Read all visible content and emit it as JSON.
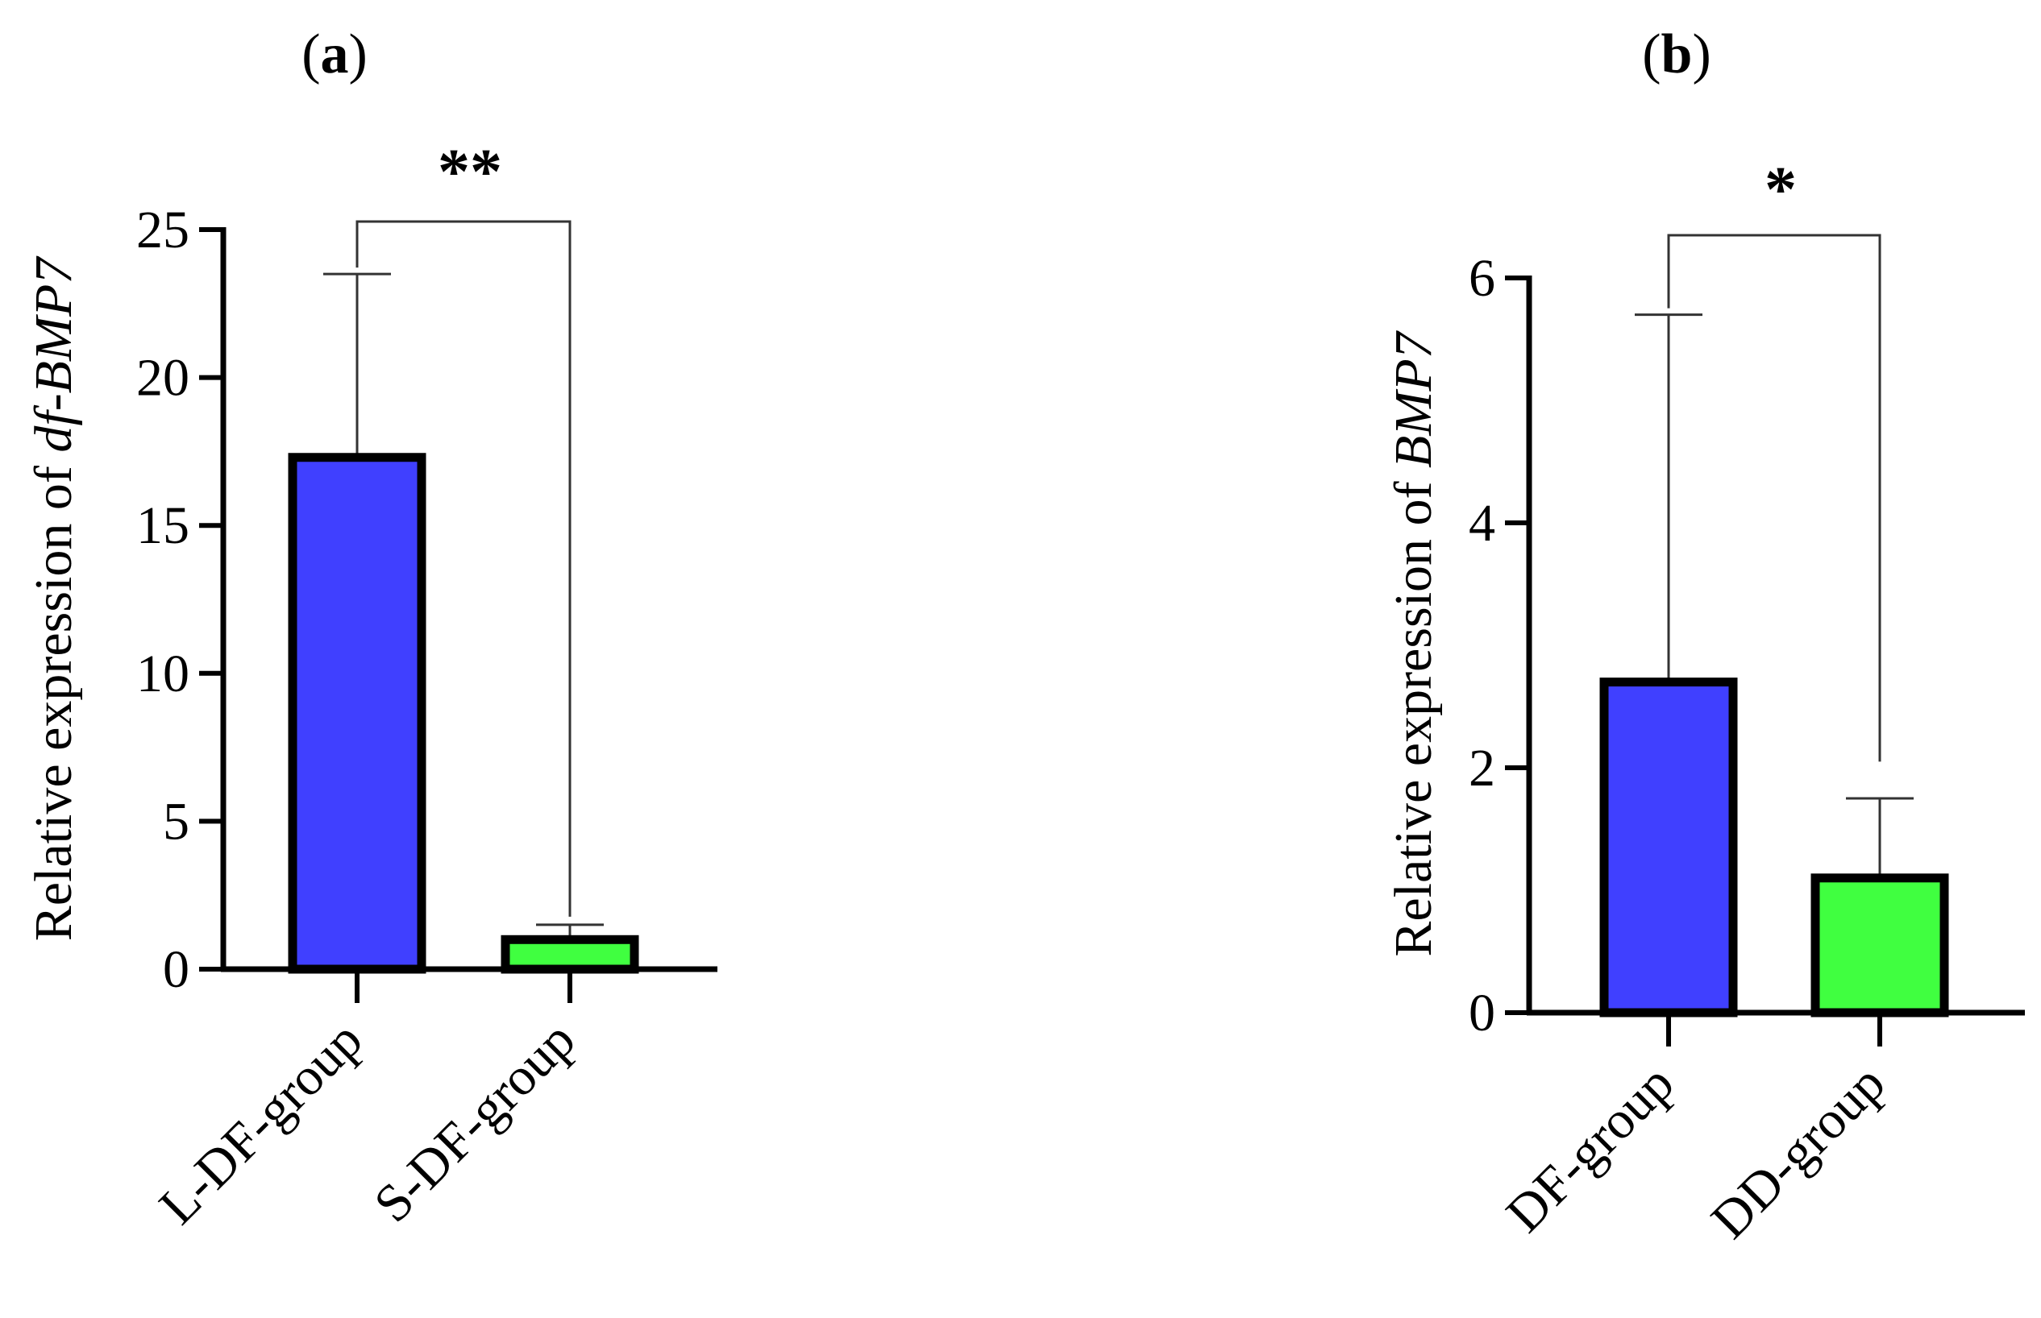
{
  "chart_data": [
    {
      "type": "bar",
      "panel_label": "a",
      "title": "",
      "xlabel": "",
      "ylabel_prefix": "Relative expression of ",
      "ylabel_italic": "df-BMP7",
      "categories": [
        "L-DF-group",
        "S-DF-group"
      ],
      "values": [
        17.3,
        1.0
      ],
      "errors": [
        6.2,
        0.5
      ],
      "colors": [
        "#4040ff",
        "#40ff40"
      ],
      "ylim": [
        0,
        25
      ],
      "yticks": [
        0,
        5,
        10,
        15,
        20,
        25
      ],
      "ytick_labels": [
        "0",
        "5",
        "10",
        "15",
        "20",
        "25"
      ],
      "significance": {
        "label": "**",
        "pair": [
          0,
          1
        ]
      },
      "grid": false
    },
    {
      "type": "bar",
      "panel_label": "b",
      "title": "",
      "xlabel": "",
      "ylabel_prefix": "Relative expression of ",
      "ylabel_italic": "BMP7",
      "categories": [
        "DF-group",
        "DD-group"
      ],
      "values": [
        2.7,
        1.1
      ],
      "errors": [
        3.0,
        0.65
      ],
      "colors": [
        "#4040ff",
        "#40ff40"
      ],
      "ylim": [
        0,
        6
      ],
      "yticks": [
        0,
        2,
        4,
        6
      ],
      "ytick_labels": [
        "0",
        "2",
        "4",
        "6"
      ],
      "significance": {
        "label": "*",
        "pair": [
          0,
          1
        ]
      },
      "grid": false
    }
  ]
}
